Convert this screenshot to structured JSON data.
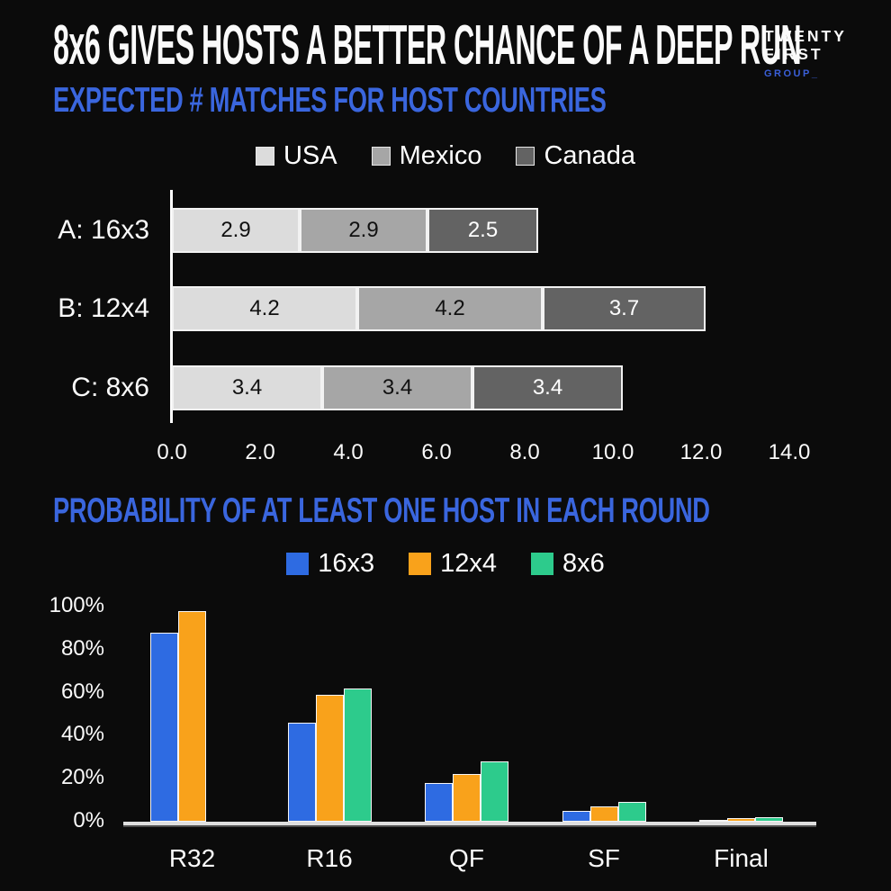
{
  "header": {
    "title": "8x6 GIVES HOSTS A BETTER CHANCE OF A DEEP RUN",
    "logo": {
      "line1": "TWENTY",
      "line2": "FIRST",
      "line3": "GROUP_"
    }
  },
  "colors": {
    "background": "#0B0B0B",
    "accent_blue": "#3A66DE",
    "logo_blue": "#3A5FD8",
    "text": "#FAFAFA"
  },
  "chart_data": [
    {
      "type": "bar",
      "orientation": "horizontal_stacked",
      "title": "EXPECTED # MATCHES FOR HOST COUNTRIES",
      "categories": [
        "A: 16x3",
        "B: 12x4",
        "C: 8x6"
      ],
      "series": [
        {
          "name": "USA",
          "color": "#DCDCDC",
          "label_color": "#111111",
          "values": [
            2.9,
            4.2,
            3.4
          ]
        },
        {
          "name": "Mexico",
          "color": "#A6A6A6",
          "label_color": "#111111",
          "values": [
            2.9,
            4.2,
            3.4
          ]
        },
        {
          "name": "Canada",
          "color": "#636363",
          "label_color": "#FFFFFF",
          "values": [
            2.5,
            3.7,
            3.4
          ]
        }
      ],
      "xlim": [
        0,
        14
      ],
      "x_ticks": [
        "0.0",
        "2.0",
        "4.0",
        "6.0",
        "8.0",
        "10.0",
        "12.0",
        "14.0"
      ],
      "grid": false,
      "legend_position": "top",
      "data_labels": true
    },
    {
      "type": "bar",
      "orientation": "vertical_grouped",
      "title": "PROBABILITY OF AT LEAST ONE HOST IN EACH ROUND",
      "categories": [
        "R32",
        "R16",
        "QF",
        "SF",
        "Final"
      ],
      "series": [
        {
          "name": "16x3",
          "color": "#2E6BE2",
          "values": [
            88,
            46,
            18,
            5,
            1
          ]
        },
        {
          "name": "12x4",
          "color": "#F9A21B",
          "values": [
            98,
            59,
            22,
            7,
            1.5
          ]
        },
        {
          "name": "8x6",
          "color": "#2DCB8C",
          "values": [
            0,
            62,
            28,
            9,
            2
          ]
        }
      ],
      "ylim": [
        0,
        100
      ],
      "y_ticks": [
        0,
        20,
        40,
        60,
        80,
        100
      ],
      "y_tick_suffix": "%",
      "grid": false,
      "legend_position": "top",
      "data_labels": false
    }
  ]
}
